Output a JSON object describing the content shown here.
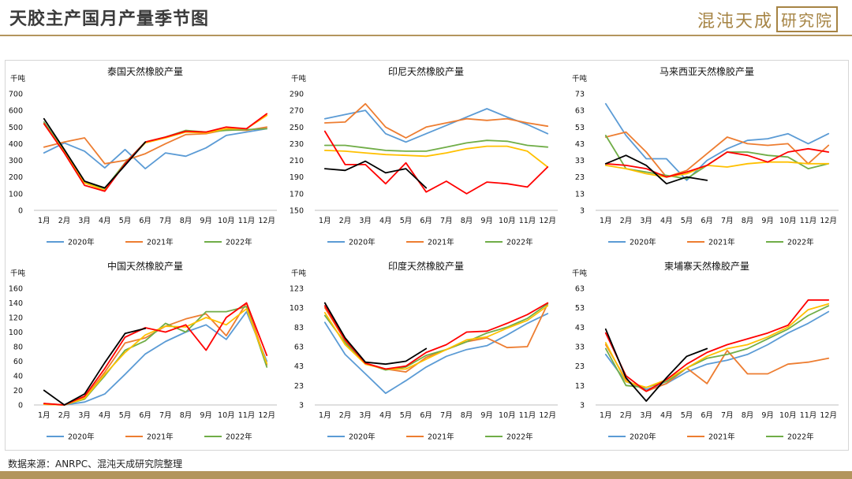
{
  "header": {
    "title": "天胶主产国月产量季节图",
    "brand_text": "混沌天成",
    "brand_box": "研究院"
  },
  "footer": {
    "source": "数据来源：ANRPC、混沌天成研究院整理"
  },
  "colors": {
    "2020年": "#5b9bd5",
    "2021年": "#ed7d31",
    "2022年": "#70ad47",
    "2023年": "#ffc000",
    "2024年": "#ff0000",
    "2025年": "#000000",
    "accent": "#b3955d"
  },
  "chart_data": [
    {
      "type": "line",
      "title": "泰国天然橡胶产量",
      "unit": "千吨",
      "categories": [
        "1月",
        "2月",
        "3月",
        "4月",
        "5月",
        "6月",
        "7月",
        "8月",
        "9月",
        "10月",
        "11月",
        "12月"
      ],
      "ylim": [
        0,
        700
      ],
      "yticks": [
        0,
        100,
        200,
        300,
        400,
        500,
        600,
        700
      ],
      "legend": [
        "2020年",
        "2021年",
        "2022年"
      ],
      "series": [
        {
          "name": "2020年",
          "color": "#5b9bd5",
          "values": [
            345,
            405,
            355,
            255,
            365,
            250,
            345,
            325,
            375,
            450,
            470,
            490
          ]
        },
        {
          "name": "2021年",
          "color": "#ed7d31",
          "values": [
            380,
            410,
            435,
            280,
            300,
            340,
            400,
            455,
            460,
            485,
            480,
            500
          ]
        },
        {
          "name": "2022年",
          "color": "#70ad47",
          "values": [
            530,
            355,
            170,
            130,
            285,
            410,
            440,
            480,
            470,
            480,
            485,
            490
          ]
        },
        {
          "color": "#ffc000",
          "values": [
            520,
            350,
            165,
            120,
            280,
            405,
            435,
            470,
            465,
            490,
            490,
            570
          ]
        },
        {
          "color": "#ff0000",
          "values": [
            520,
            345,
            150,
            115,
            280,
            410,
            440,
            475,
            470,
            500,
            490,
            580
          ]
        },
        {
          "color": "#000000",
          "values": [
            550,
            365,
            175,
            135,
            270,
            410,
            null,
            null,
            null,
            null,
            null,
            null
          ]
        }
      ]
    },
    {
      "type": "line",
      "title": "印尼天然橡胶产量",
      "unit": "千吨",
      "categories": [
        "1月",
        "2月",
        "3月",
        "4月",
        "5月",
        "6月",
        "7月",
        "8月",
        "9月",
        "10月",
        "11月",
        "12月"
      ],
      "ylim": [
        150,
        290
      ],
      "yticks": [
        150,
        170,
        190,
        210,
        230,
        250,
        270,
        290
      ],
      "legend": [
        "2020年",
        "2021年",
        "2022年"
      ],
      "series": [
        {
          "name": "2020年",
          "color": "#5b9bd5",
          "values": [
            260,
            265,
            270,
            242,
            232,
            242,
            252,
            262,
            272,
            262,
            253,
            242
          ]
        },
        {
          "name": "2021年",
          "color": "#ed7d31",
          "values": [
            255,
            256,
            278,
            250,
            237,
            250,
            255,
            260,
            258,
            260,
            255,
            251
          ]
        },
        {
          "name": "2022年",
          "color": "#70ad47",
          "values": [
            228,
            228,
            225,
            222,
            221,
            221,
            226,
            231,
            234,
            233,
            228,
            226
          ]
        },
        {
          "color": "#ffc000",
          "values": [
            222,
            221,
            219,
            217,
            216,
            215,
            219,
            224,
            227,
            227,
            221,
            202
          ]
        },
        {
          "color": "#ff0000",
          "values": [
            245,
            205,
            205,
            182,
            207,
            172,
            185,
            170,
            184,
            182,
            178,
            202
          ]
        },
        {
          "color": "#000000",
          "values": [
            200,
            198,
            209,
            195,
            200,
            177,
            null,
            null,
            null,
            null,
            null,
            null
          ]
        }
      ]
    },
    {
      "type": "line",
      "title": "马来西亚天然橡胶产量",
      "unit": "千吨",
      "categories": [
        "1月",
        "2月",
        "3月",
        "4月",
        "5月",
        "6月",
        "7月",
        "8月",
        "9月",
        "10月",
        "11月",
        "12月"
      ],
      "ylim": [
        3,
        73
      ],
      "yticks": [
        3,
        13,
        23,
        33,
        43,
        53,
        63,
        73
      ],
      "legend": [
        "2020年",
        "2021年",
        "2022年"
      ],
      "series": [
        {
          "name": "2020年",
          "color": "#5b9bd5",
          "values": [
            67,
            48,
            34,
            34,
            21,
            33,
            40,
            45,
            46,
            49,
            43,
            49
          ]
        },
        {
          "name": "2021年",
          "color": "#ed7d31",
          "values": [
            47,
            50,
            38,
            23,
            27,
            37,
            47,
            43,
            42,
            43,
            31,
            42
          ]
        },
        {
          "name": "2022年",
          "color": "#70ad47",
          "values": [
            48,
            28,
            26,
            24,
            22,
            30,
            38,
            38,
            36,
            35,
            28,
            31
          ]
        },
        {
          "color": "#ffc000",
          "values": [
            30,
            28,
            25,
            23,
            25,
            30,
            29,
            31,
            32,
            32,
            31,
            31
          ]
        },
        {
          "color": "#ff0000",
          "values": [
            31,
            30,
            28,
            23,
            26,
            30,
            38,
            36,
            32,
            38,
            40,
            38
          ]
        },
        {
          "color": "#000000",
          "values": [
            31,
            36,
            30,
            19,
            23,
            21,
            null,
            null,
            null,
            null,
            null,
            null
          ]
        }
      ]
    },
    {
      "type": "line",
      "title": "中国天然橡胶产量",
      "unit": "千吨",
      "categories": [
        "1月",
        "2月",
        "3月",
        "4月",
        "5月",
        "6月",
        "7月",
        "8月",
        "9月",
        "10月",
        "11月",
        "12月"
      ],
      "ylim": [
        0,
        160
      ],
      "yticks": [
        0,
        20,
        40,
        60,
        80,
        100,
        120,
        140,
        160
      ],
      "legend": [
        "2020年",
        "2021年",
        "2022年"
      ],
      "series": [
        {
          "name": "2020年",
          "color": "#5b9bd5",
          "values": [
            1,
            0,
            4,
            15,
            42,
            70,
            87,
            100,
            110,
            90,
            128,
            60
          ]
        },
        {
          "name": "2021年",
          "color": "#ed7d31",
          "values": [
            1,
            0,
            10,
            45,
            85,
            92,
            108,
            118,
            125,
            95,
            140,
            55
          ]
        },
        {
          "name": "2022年",
          "color": "#70ad47",
          "values": [
            2,
            0,
            8,
            40,
            75,
            88,
            112,
            100,
            128,
            128,
            135,
            52
          ]
        },
        {
          "color": "#ffc000",
          "values": [
            1,
            0,
            9,
            42,
            72,
            96,
            108,
            107,
            120,
            110,
            132,
            57
          ]
        },
        {
          "color": "#ff0000",
          "values": [
            2,
            0,
            12,
            50,
            93,
            106,
            100,
            110,
            75,
            120,
            140,
            68
          ]
        },
        {
          "color": "#000000",
          "values": [
            20,
            0,
            15,
            58,
            98,
            105,
            null,
            null,
            null,
            null,
            null,
            null
          ]
        }
      ]
    },
    {
      "type": "line",
      "title": "印度天然橡胶产量",
      "unit": "千吨",
      "categories": [
        "1月",
        "2月",
        "3月",
        "4月",
        "5月",
        "6月",
        "7月",
        "8月",
        "9月",
        "10月",
        "11月",
        "12月"
      ],
      "ylim": [
        3,
        123
      ],
      "yticks": [
        3,
        23,
        43,
        63,
        83,
        103,
        123
      ],
      "legend": [
        "2020年",
        "2021年",
        "2022年"
      ],
      "series": [
        {
          "name": "2020年",
          "color": "#5b9bd5",
          "values": [
            88,
            55,
            35,
            15,
            28,
            42,
            53,
            60,
            64,
            75,
            87,
            97
          ]
        },
        {
          "name": "2021年",
          "color": "#ed7d31",
          "values": [
            103,
            69,
            45,
            40,
            37,
            52,
            60,
            68,
            72,
            62,
            63,
            107
          ]
        },
        {
          "name": "2022年",
          "color": "#70ad47",
          "values": [
            95,
            67,
            46,
            39,
            42,
            54,
            60,
            68,
            77,
            83,
            92,
            107
          ]
        },
        {
          "color": "#ffc000",
          "values": [
            98,
            65,
            45,
            40,
            40,
            50,
            60,
            70,
            73,
            82,
            90,
            105
          ]
        },
        {
          "color": "#ff0000",
          "values": [
            105,
            70,
            46,
            40,
            43,
            57,
            65,
            78,
            79,
            87,
            96,
            108
          ]
        },
        {
          "color": "#000000",
          "values": [
            108,
            72,
            47,
            45,
            48,
            61,
            null,
            null,
            null,
            null,
            null,
            null
          ]
        }
      ]
    },
    {
      "type": "line",
      "title": "柬埔寨天然橡胶产量",
      "unit": "千吨",
      "categories": [
        "1月",
        "2月",
        "3月",
        "4月",
        "5月",
        "6月",
        "7月",
        "8月",
        "9月",
        "10月",
        "11月",
        "12月"
      ],
      "ylim": [
        3,
        63
      ],
      "yticks": [
        3,
        13,
        23,
        33,
        43,
        53,
        63
      ],
      "legend": [
        "2020年",
        "2021年",
        "2022年"
      ],
      "series": [
        {
          "name": "2020年",
          "color": "#5b9bd5",
          "values": [
            29,
            15,
            11,
            14,
            20,
            24,
            26,
            29,
            34,
            40,
            45,
            51
          ]
        },
        {
          "name": "2021年",
          "color": "#ed7d31",
          "values": [
            34,
            16,
            10,
            14,
            22,
            14,
            31,
            19,
            19,
            24,
            25,
            27
          ]
        },
        {
          "name": "2022年",
          "color": "#70ad47",
          "values": [
            32,
            13,
            12,
            15,
            22,
            27,
            29,
            32,
            37,
            42,
            49,
            54
          ]
        },
        {
          "color": "#ffc000",
          "values": [
            35,
            15,
            12,
            16,
            22,
            28,
            32,
            34,
            38,
            43,
            52,
            55
          ]
        },
        {
          "color": "#ff0000",
          "values": [
            40,
            18,
            10,
            16,
            24,
            30,
            34,
            37,
            40,
            44,
            57,
            57
          ]
        },
        {
          "color": "#000000",
          "values": [
            42,
            17,
            5,
            17,
            28,
            32,
            null,
            null,
            null,
            null,
            null,
            null
          ]
        }
      ]
    }
  ]
}
